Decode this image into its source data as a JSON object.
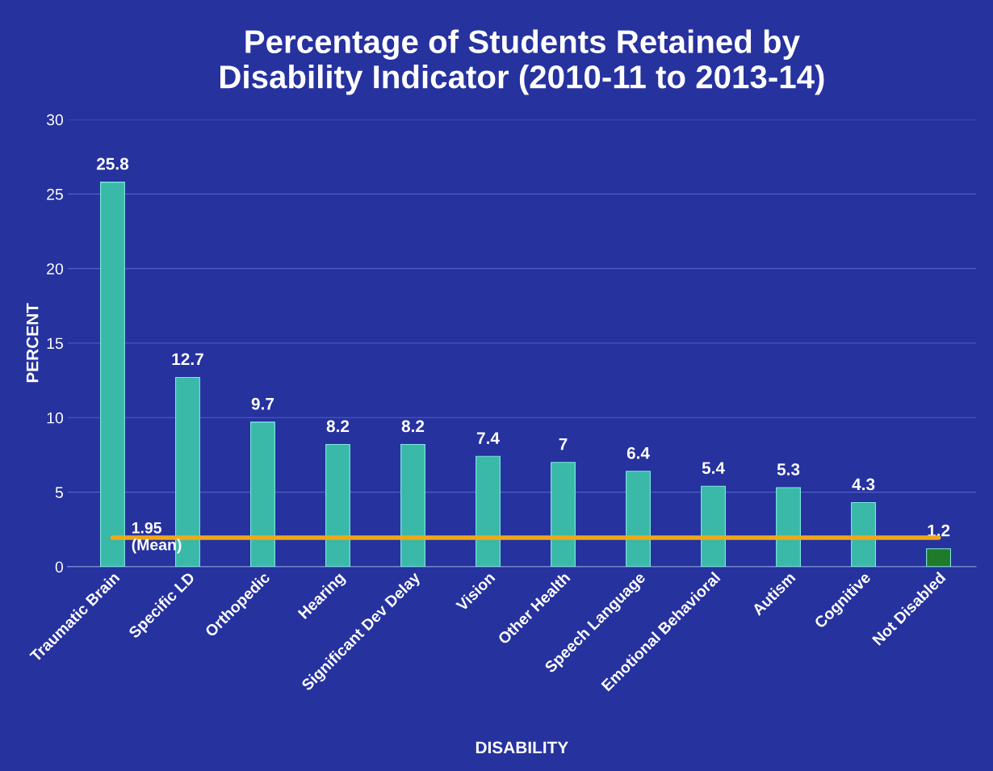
{
  "chart_data": {
    "type": "bar",
    "title": "Percentage of Students Retained by\nDisability Indicator (2010-11 to 2013-14)",
    "xlabel": "DISABILITY",
    "ylabel": "PERCENT",
    "categories": [
      "Traumatic Brain",
      "Specific LD",
      "Orthopedic",
      "Hearing",
      "Significant Dev Delay",
      "Vision",
      "Other Health",
      "Speech Language",
      "Emotional Behavioral",
      "Autism",
      "Cognitive",
      "Not Disabled"
    ],
    "values": [
      25.8,
      12.7,
      9.7,
      8.2,
      8.2,
      7.4,
      7,
      6.4,
      5.4,
      5.3,
      4.3,
      1.2
    ],
    "colors": [
      "#3ab8a8",
      "#3ab8a8",
      "#3ab8a8",
      "#3ab8a8",
      "#3ab8a8",
      "#3ab8a8",
      "#3ab8a8",
      "#3ab8a8",
      "#3ab8a8",
      "#3ab8a8",
      "#3ab8a8",
      "#1f7a2a"
    ],
    "ylim": [
      0,
      30
    ],
    "yticks": [
      0,
      5,
      10,
      15,
      20,
      25,
      30
    ],
    "grid": "y",
    "data_labels": true,
    "ref_lines": [
      {
        "axis": "y",
        "value": 1.95,
        "label": "1.95\n(Mean)",
        "color": "#f0a818"
      }
    ]
  }
}
